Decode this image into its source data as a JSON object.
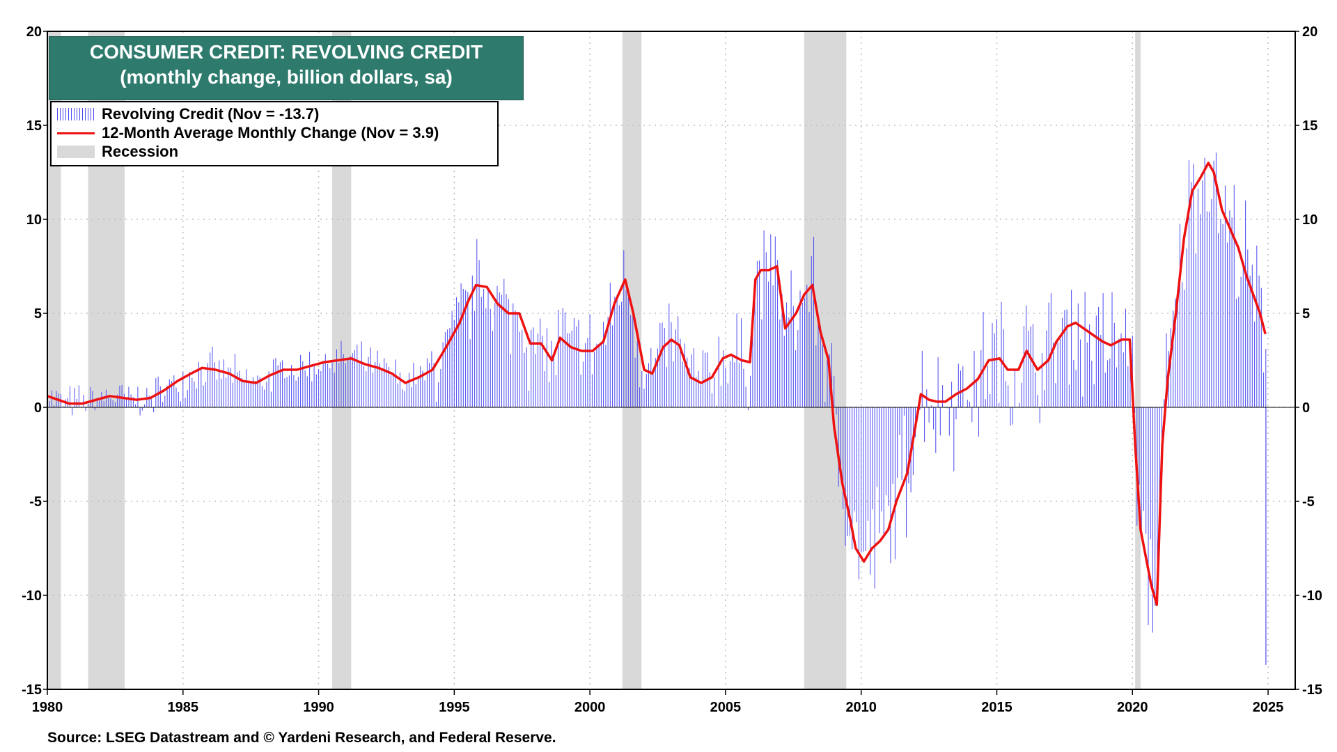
{
  "chart_data": {
    "type": "bar",
    "title": "CONSUMER CREDIT: REVOLVING CREDIT",
    "subtitle": "(monthly change, billion dollars, sa)",
    "xlim": [
      1980,
      2026
    ],
    "ylim": [
      -15,
      20
    ],
    "x_ticks": [
      "1980",
      "1985",
      "1990",
      "1995",
      "2000",
      "2005",
      "2010",
      "2015",
      "2020",
      "2025"
    ],
    "y_ticks_left": [
      "20",
      "15",
      "10",
      "5",
      "0",
      "-5",
      "-10",
      "-15"
    ],
    "y_ticks_right": [
      "20",
      "15",
      "10",
      "5",
      "0",
      "-5",
      "-10",
      "-15"
    ],
    "legend": [
      {
        "label": "Revolving Credit (Nov = -13.7)",
        "kind": "bars",
        "color": "#3b3bef"
      },
      {
        "label": "12-Month Average Monthly Change (Nov = 3.9)",
        "kind": "line",
        "color": "#ee1111"
      },
      {
        "label": "Recession",
        "kind": "area",
        "color": "#d9d9d9"
      }
    ],
    "recessions": [
      [
        1980.0,
        1980.5
      ],
      [
        1981.5,
        1982.85
      ],
      [
        1990.5,
        1991.2
      ],
      [
        2001.2,
        2001.9
      ],
      [
        2007.9,
        2009.45
      ],
      [
        2020.1,
        2020.3
      ]
    ],
    "series": [
      {
        "name": "12-Month Average Monthly Change",
        "kind": "line",
        "x": [
          1980.0,
          1980.4,
          1980.8,
          1981.3,
          1981.8,
          1982.3,
          1982.8,
          1983.3,
          1983.8,
          1984.3,
          1984.8,
          1985.3,
          1985.7,
          1986.2,
          1986.7,
          1987.2,
          1987.7,
          1988.2,
          1988.7,
          1989.2,
          1989.7,
          1990.2,
          1990.7,
          1991.2,
          1991.7,
          1992.2,
          1992.7,
          1993.2,
          1993.7,
          1994.2,
          1994.7,
          1995.2,
          1995.5,
          1995.8,
          1996.2,
          1996.6,
          1997.0,
          1997.4,
          1997.8,
          1998.2,
          1998.6,
          1998.9,
          1999.3,
          1999.7,
          2000.1,
          2000.5,
          2000.9,
          2001.3,
          2001.6,
          2002.0,
          2002.3,
          2002.7,
          2003.0,
          2003.3,
          2003.7,
          2004.1,
          2004.5,
          2004.9,
          2005.2,
          2005.6,
          2005.9,
          2006.1,
          2006.3,
          2006.6,
          2006.9,
          2007.2,
          2007.6,
          2007.9,
          2008.2,
          2008.5,
          2008.8,
          2009.0,
          2009.3,
          2009.6,
          2009.8,
          2010.1,
          2010.4,
          2010.7,
          2011.0,
          2011.3,
          2011.7,
          2012.0,
          2012.2,
          2012.5,
          2012.8,
          2013.1,
          2013.5,
          2013.9,
          2014.3,
          2014.7,
          2015.1,
          2015.4,
          2015.8,
          2016.1,
          2016.5,
          2016.9,
          2017.2,
          2017.6,
          2017.9,
          2018.2,
          2018.6,
          2018.9,
          2019.2,
          2019.6,
          2019.9,
          2020.1,
          2020.3,
          2020.5,
          2020.7,
          2020.9,
          2021.1,
          2021.3,
          2021.6,
          2021.9,
          2022.2,
          2022.5,
          2022.8,
          2023.0,
          2023.3,
          2023.6,
          2023.9,
          2024.2,
          2024.5,
          2024.7,
          2024.9
        ],
        "values": [
          0.6,
          0.4,
          0.2,
          0.2,
          0.4,
          0.6,
          0.5,
          0.4,
          0.5,
          0.9,
          1.4,
          1.8,
          2.1,
          2.0,
          1.8,
          1.4,
          1.3,
          1.7,
          2.0,
          2.0,
          2.2,
          2.4,
          2.5,
          2.6,
          2.3,
          2.1,
          1.8,
          1.3,
          1.6,
          2.0,
          3.2,
          4.5,
          5.6,
          6.5,
          6.4,
          5.5,
          5.0,
          5.0,
          3.4,
          3.4,
          2.5,
          3.7,
          3.2,
          3.0,
          3.0,
          3.5,
          5.5,
          6.8,
          5.0,
          2.0,
          1.8,
          3.2,
          3.6,
          3.3,
          1.6,
          1.3,
          1.6,
          2.6,
          2.8,
          2.5,
          2.4,
          6.8,
          7.3,
          7.3,
          7.5,
          4.2,
          5.0,
          6.0,
          6.5,
          4.0,
          2.5,
          -1.0,
          -4.0,
          -6.0,
          -7.5,
          -8.2,
          -7.5,
          -7.1,
          -6.5,
          -5.0,
          -3.5,
          -1.0,
          0.7,
          0.4,
          0.3,
          0.3,
          0.7,
          1.0,
          1.5,
          2.5,
          2.6,
          2.0,
          2.0,
          3.0,
          2.0,
          2.5,
          3.5,
          4.3,
          4.5,
          4.2,
          3.8,
          3.5,
          3.3,
          3.6,
          3.6,
          -2.0,
          -6.5,
          -8.0,
          -9.5,
          -10.5,
          -2.0,
          1.5,
          5.0,
          9.0,
          11.5,
          12.2,
          13.0,
          12.5,
          10.5,
          9.5,
          8.5,
          7.0,
          5.8,
          5.0,
          3.9
        ]
      }
    ]
  },
  "source": "Source: LSEG Datastream and © Yardeni Research, and Federal Reserve."
}
